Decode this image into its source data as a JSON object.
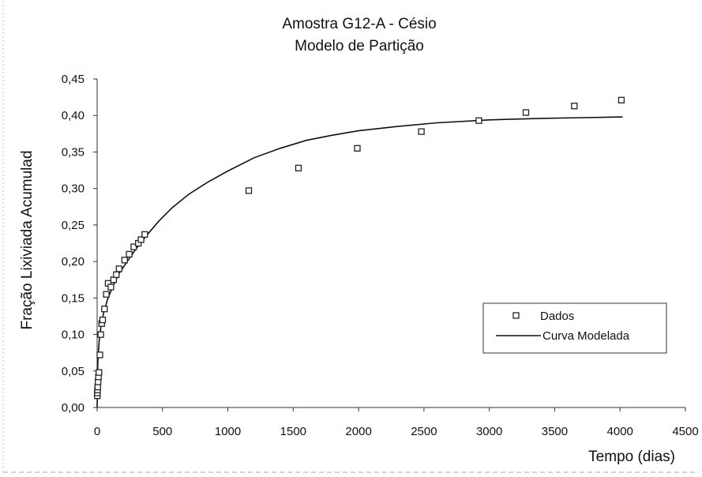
{
  "chart_data": {
    "type": "scatter",
    "title": "Amostra G12-A - Césio",
    "subtitle": "Modelo de Partição",
    "xlabel": "Tempo (dias)",
    "ylabel": "Fração  Lixiviada Acumulad",
    "xlim": [
      0,
      4500
    ],
    "ylim": [
      0,
      0.45
    ],
    "x_ticks": [
      "0",
      "500",
      "1000",
      "1500",
      "2000",
      "2500",
      "3000",
      "3500",
      "4000",
      "4500"
    ],
    "y_ticks": [
      "0,00",
      "0,05",
      "0,10",
      "0,15",
      "0,20",
      "0,25",
      "0,30",
      "0,35",
      "0,40",
      "0,45"
    ],
    "grid": false,
    "legend_position": "right-center",
    "series": [
      {
        "name": "Dados",
        "marker": "hollow-square",
        "points": [
          [
            1,
            0.016
          ],
          [
            2,
            0.02
          ],
          [
            3,
            0.024
          ],
          [
            5,
            0.028
          ],
          [
            7,
            0.035
          ],
          [
            10,
            0.042
          ],
          [
            14,
            0.048
          ],
          [
            21,
            0.072
          ],
          [
            28,
            0.1
          ],
          [
            35,
            0.115
          ],
          [
            42,
            0.12
          ],
          [
            56,
            0.135
          ],
          [
            70,
            0.155
          ],
          [
            84,
            0.17
          ],
          [
            105,
            0.165
          ],
          [
            126,
            0.175
          ],
          [
            147,
            0.182
          ],
          [
            168,
            0.19
          ],
          [
            210,
            0.202
          ],
          [
            245,
            0.21
          ],
          [
            280,
            0.22
          ],
          [
            315,
            0.225
          ],
          [
            336,
            0.23
          ],
          [
            364,
            0.237
          ],
          [
            1160,
            0.297
          ],
          [
            1540,
            0.328
          ],
          [
            1990,
            0.355
          ],
          [
            2480,
            0.378
          ],
          [
            2920,
            0.393
          ],
          [
            3280,
            0.404
          ],
          [
            3650,
            0.413
          ],
          [
            4010,
            0.421
          ]
        ]
      },
      {
        "name": "Curva Modelada",
        "style": "line",
        "points": [
          [
            0,
            0.0
          ],
          [
            5,
            0.06
          ],
          [
            15,
            0.09
          ],
          [
            30,
            0.112
          ],
          [
            50,
            0.13
          ],
          [
            80,
            0.148
          ],
          [
            120,
            0.166
          ],
          [
            170,
            0.184
          ],
          [
            230,
            0.2
          ],
          [
            300,
            0.218
          ],
          [
            380,
            0.236
          ],
          [
            470,
            0.255
          ],
          [
            570,
            0.273
          ],
          [
            700,
            0.292
          ],
          [
            850,
            0.309
          ],
          [
            1000,
            0.324
          ],
          [
            1200,
            0.342
          ],
          [
            1400,
            0.355
          ],
          [
            1600,
            0.366
          ],
          [
            1800,
            0.373
          ],
          [
            2000,
            0.379
          ],
          [
            2300,
            0.385
          ],
          [
            2600,
            0.39
          ],
          [
            3000,
            0.394
          ],
          [
            3400,
            0.396
          ],
          [
            3700,
            0.397
          ],
          [
            4020,
            0.398
          ]
        ]
      }
    ]
  },
  "colors": {
    "axis": "#333333",
    "marker": "#222222",
    "line": "#111111",
    "background": "#ffffff"
  }
}
